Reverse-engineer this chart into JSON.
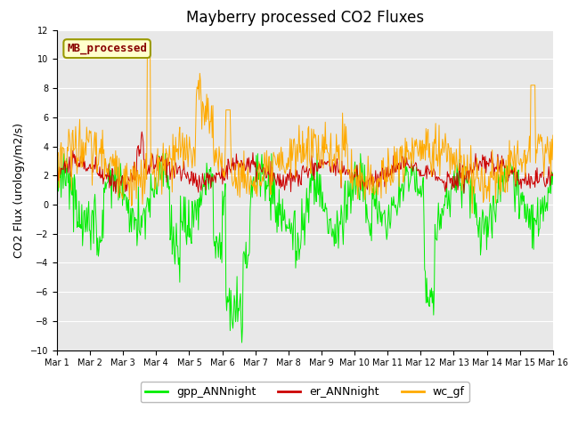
{
  "title": "Mayberry processed CO2 Fluxes",
  "ylabel": "CO2 Flux (urology/m2/s)",
  "ylim": [
    -10,
    12
  ],
  "yticks": [
    -10,
    -8,
    -6,
    -4,
    -2,
    0,
    2,
    4,
    6,
    8,
    10,
    12
  ],
  "xtick_labels": [
    "Mar 1",
    "Mar 2",
    "Mar 3",
    "Mar 4",
    "Mar 5",
    "Mar 6",
    "Mar 7",
    "Mar 8",
    "Mar 9",
    "Mar 10",
    "Mar 11",
    "Mar 12",
    "Mar 13",
    "Mar 14",
    "Mar 15",
    "Mar 16"
  ],
  "n_days": 15,
  "n_per_day": 48,
  "color_gpp": "#00ee00",
  "color_er": "#cc0000",
  "color_wc": "#ffaa00",
  "legend_labels": [
    "gpp_ANNnight",
    "er_ANNnight",
    "wc_gf"
  ],
  "mb_label": "MB_processed",
  "mb_label_color": "#880000",
  "mb_box_facecolor": "#ffffcc",
  "mb_box_edgecolor": "#999900",
  "bg_color": "#e8e8e8",
  "title_fontsize": 12,
  "axis_label_fontsize": 9,
  "tick_fontsize": 7,
  "legend_fontsize": 9,
  "linewidth": 0.7
}
